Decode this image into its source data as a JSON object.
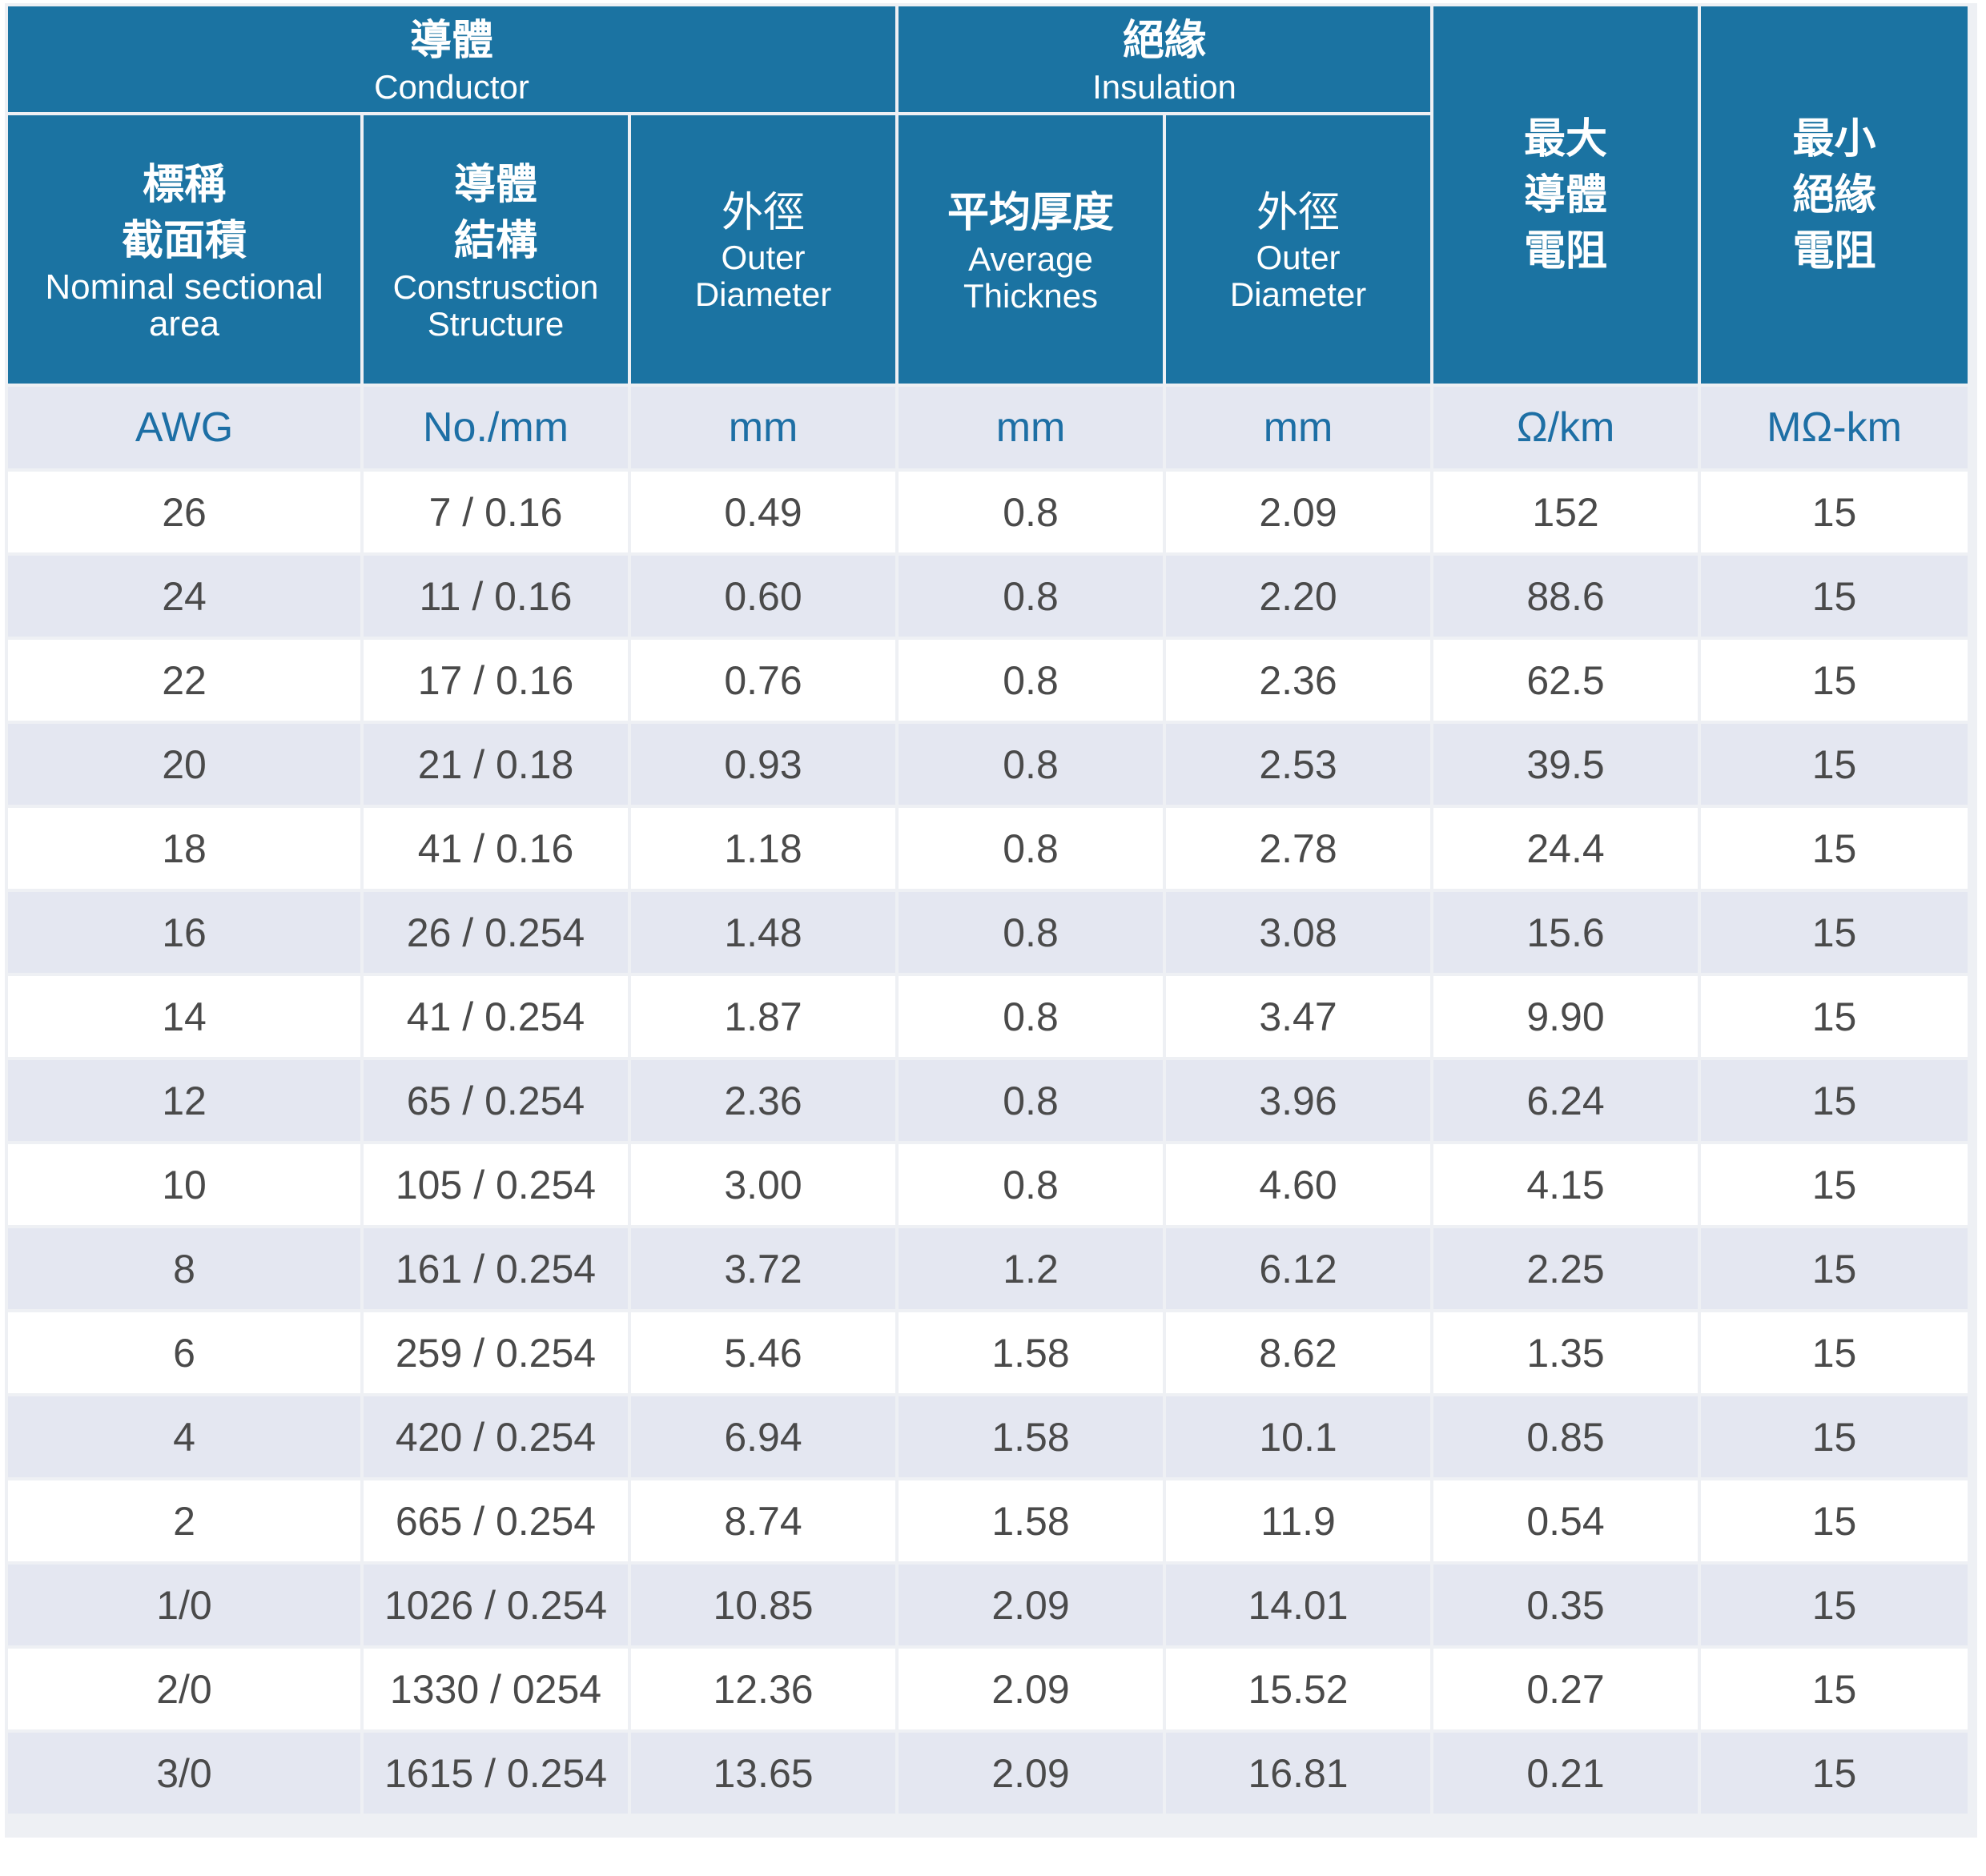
{
  "header": {
    "conductor": {
      "zh": "導體",
      "en": "Conductor"
    },
    "insulation": {
      "zh": "絕緣",
      "en": "Insulation"
    },
    "nominal_area": {
      "zh_1": "標稱",
      "zh_2": "截面積",
      "en_1": "Nominal sectional",
      "en_2": "area"
    },
    "construction": {
      "zh_1": "導體",
      "zh_2": "結構",
      "en_1": "Construsction",
      "en_2": "Structure"
    },
    "conductor_od": {
      "zh": "外徑",
      "en_1": "Outer",
      "en_2": "Diameter"
    },
    "avg_thickness": {
      "zh": "平均厚度",
      "en_1": "Average",
      "en_2": "Thicknes"
    },
    "insulation_od": {
      "zh": "外徑",
      "en_1": "Outer",
      "en_2": "Diameter"
    },
    "max_resistance": {
      "zh_1": "最大",
      "zh_2": "導體",
      "zh_3": "電阻"
    },
    "min_insulation_resistance": {
      "zh_1": "最小",
      "zh_2": "絕緣",
      "zh_3": "電阻"
    }
  },
  "units": [
    "AWG",
    "No./mm",
    "mm",
    "mm",
    "mm",
    "Ω/km",
    "MΩ-km"
  ],
  "rows": [
    [
      "26",
      "7 / 0.16",
      "0.49",
      "0.8",
      "2.09",
      "152",
      "15"
    ],
    [
      "24",
      "11 / 0.16",
      "0.60",
      "0.8",
      "2.20",
      "88.6",
      "15"
    ],
    [
      "22",
      "17 / 0.16",
      "0.76",
      "0.8",
      "2.36",
      "62.5",
      "15"
    ],
    [
      "20",
      "21 / 0.18",
      "0.93",
      "0.8",
      "2.53",
      "39.5",
      "15"
    ],
    [
      "18",
      "41 / 0.16",
      "1.18",
      "0.8",
      "2.78",
      "24.4",
      "15"
    ],
    [
      "16",
      "26 / 0.254",
      "1.48",
      "0.8",
      "3.08",
      "15.6",
      "15"
    ],
    [
      "14",
      "41 / 0.254",
      "1.87",
      "0.8",
      "3.47",
      "9.90",
      "15"
    ],
    [
      "12",
      "65 / 0.254",
      "2.36",
      "0.8",
      "3.96",
      "6.24",
      "15"
    ],
    [
      "10",
      "105 / 0.254",
      "3.00",
      "0.8",
      "4.60",
      "4.15",
      "15"
    ],
    [
      "8",
      "161 / 0.254",
      "3.72",
      "1.2",
      "6.12",
      "2.25",
      "15"
    ],
    [
      "6",
      "259 / 0.254",
      "5.46",
      "1.58",
      "8.62",
      "1.35",
      "15"
    ],
    [
      "4",
      "420 / 0.254",
      "6.94",
      "1.58",
      "10.1",
      "0.85",
      "15"
    ],
    [
      "2",
      "665 / 0.254",
      "8.74",
      "1.58",
      "11.9",
      "0.54",
      "15"
    ],
    [
      "1/0",
      "1026 / 0.254",
      "10.85",
      "2.09",
      "14.01",
      "0.35",
      "15"
    ],
    [
      "2/0",
      "1330 / 0254",
      "12.36",
      "2.09",
      "15.52",
      "0.27",
      "15"
    ],
    [
      "3/0",
      "1615 / 0.254",
      "13.65",
      "2.09",
      "16.81",
      "0.21",
      "15"
    ]
  ],
  "colors": {
    "header_bg": "#1b73a2",
    "unit_text": "#1d6fa5",
    "stripe": "#e4e7f1",
    "body_text": "#4a4a4a"
  }
}
